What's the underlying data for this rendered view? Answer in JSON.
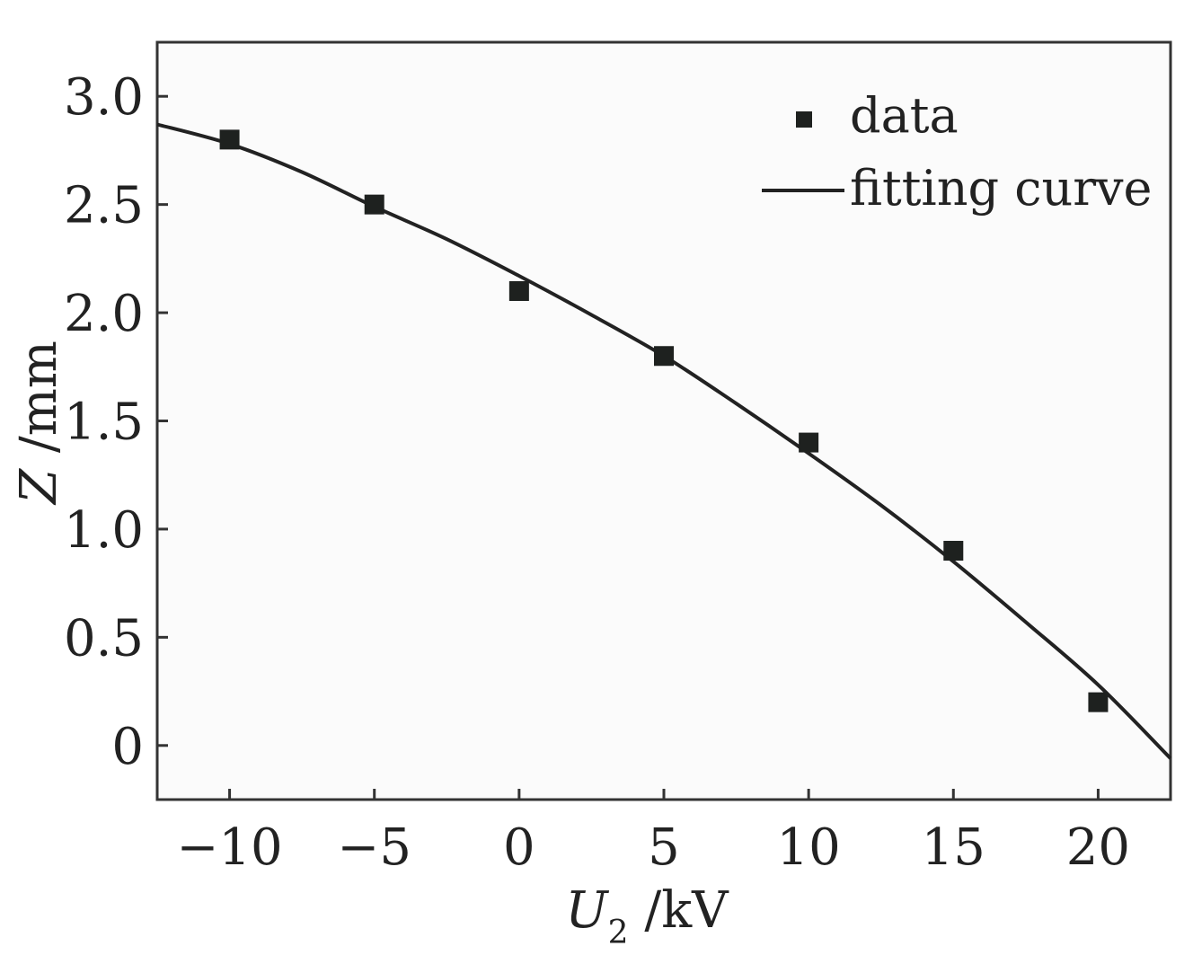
{
  "chart_data": {
    "type": "scatter",
    "title": "",
    "xlabel": {
      "symbol": "U",
      "subscript": "2",
      "unit": " /kV"
    },
    "ylabel": {
      "symbol": "Z",
      "unit": " /mm"
    },
    "xlim": [
      -12.5,
      22.5
    ],
    "ylim": [
      -0.25,
      3.25
    ],
    "xticks": [
      -10,
      -5,
      0,
      5,
      10,
      15,
      20
    ],
    "xtick_labels": [
      "−10",
      "−5",
      "0",
      "5",
      "10",
      "15",
      "20"
    ],
    "yticks": [
      0,
      0.5,
      1.0,
      1.5,
      2.0,
      2.5,
      3.0
    ],
    "ytick_labels": [
      "0",
      "0.5",
      "1.0",
      "1.5",
      "2.0",
      "2.5",
      "3.0"
    ],
    "series": [
      {
        "name": "data",
        "kind": "markers",
        "x": [
          -10,
          -5,
          0,
          5,
          10,
          15,
          20
        ],
        "y": [
          2.8,
          2.5,
          2.1,
          1.8,
          1.4,
          0.9,
          0.2
        ]
      },
      {
        "name": "fitting curve",
        "kind": "line",
        "x": [
          -12.5,
          -10,
          -7.5,
          -5,
          -2.5,
          0,
          2.5,
          5,
          7.5,
          10,
          12.5,
          15,
          17.5,
          20,
          22.5
        ],
        "y": [
          2.87,
          2.78,
          2.65,
          2.49,
          2.34,
          2.17,
          1.99,
          1.8,
          1.58,
          1.35,
          1.11,
          0.85,
          0.57,
          0.28,
          -0.06
        ]
      }
    ],
    "legend": {
      "position": "top-right",
      "entries": [
        "data",
        "fitting curve"
      ]
    },
    "grid": false
  },
  "colors": {
    "ink": "#222222",
    "marker": "#1e211f",
    "frame": "#333333"
  }
}
